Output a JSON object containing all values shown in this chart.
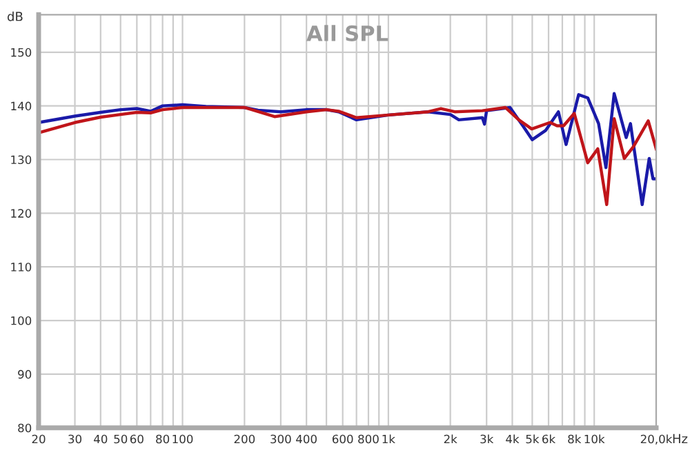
{
  "chart_data": {
    "type": "line",
    "title": "All SPL",
    "xlabel": "Hz",
    "ylabel": "dB",
    "log": "x",
    "xlim": [
      20,
      20000
    ],
    "ylim": [
      80,
      157
    ],
    "xticks": [
      20,
      30,
      40,
      50,
      60,
      {
        "value": 70,
        "label": null
      },
      80,
      {
        "value": 90,
        "label": null
      },
      100,
      200,
      300,
      400,
      {
        "value": 500,
        "label": null
      },
      600,
      {
        "value": 700,
        "label": null
      },
      800,
      {
        "value": 900,
        "label": null
      },
      {
        "value": 1000,
        "label": "1k"
      },
      {
        "value": 2000,
        "label": "2k"
      },
      {
        "value": 3000,
        "label": "3k"
      },
      {
        "value": 4000,
        "label": "4k"
      },
      {
        "value": 5000,
        "label": "5k"
      },
      {
        "value": 6000,
        "label": "6k"
      },
      {
        "value": 7000,
        "label": null
      },
      {
        "value": 8000,
        "label": "8k"
      },
      {
        "value": 9000,
        "label": null
      },
      {
        "value": 10000,
        "label": "10k"
      },
      {
        "value": 20000,
        "label": "20,0k"
      }
    ],
    "yticks": [
      80,
      90,
      100,
      110,
      120,
      130,
      140,
      150
    ],
    "grid": true,
    "marker": "none",
    "line_style": "solid",
    "series": [
      {
        "color": "#1a1aa8",
        "x": [
          20,
          30,
          40,
          50,
          60,
          70,
          80,
          100,
          130,
          200,
          233,
          300,
          400,
          500,
          573,
          700,
          1000,
          1560,
          2000,
          2200,
          2860,
          2930,
          3000,
          3900,
          4500,
          5000,
          5800,
          6700,
          7300,
          8400,
          9300,
          10500,
          11400,
          12500,
          14300,
          15000,
          17100,
          18500,
          19300,
          20000
        ],
        "values": [
          136.9,
          138.1,
          138.8,
          139.3,
          139.5,
          139.0,
          140.0,
          140.2,
          139.9,
          139.7,
          139.2,
          138.9,
          139.3,
          139.3,
          138.9,
          137.4,
          138.3,
          138.9,
          138.4,
          137.4,
          137.8,
          136.6,
          139.1,
          139.7,
          136.3,
          133.7,
          135.4,
          138.9,
          132.8,
          142.1,
          141.5,
          136.7,
          128.5,
          142.3,
          134.1,
          136.7,
          121.6,
          130.2,
          126.4,
          126.4
        ]
      },
      {
        "color": "#c0151a",
        "x": [
          20,
          30,
          40,
          50,
          60,
          70,
          80,
          100,
          200,
          280,
          400,
          500,
          573,
          700,
          1000,
          1560,
          1800,
          2100,
          2860,
          3700,
          4300,
          4970,
          6100,
          6600,
          7100,
          8000,
          9300,
          10400,
          11500,
          12500,
          14000,
          15500,
          18300,
          20000
        ],
        "values": [
          135.0,
          136.9,
          137.9,
          138.4,
          138.8,
          138.7,
          139.3,
          139.7,
          139.7,
          138.0,
          138.9,
          139.3,
          139.0,
          137.8,
          138.3,
          138.9,
          139.5,
          138.9,
          139.1,
          139.7,
          137.4,
          135.7,
          136.9,
          136.3,
          136.3,
          138.6,
          129.4,
          132.0,
          121.6,
          137.6,
          130.2,
          132.4,
          137.2,
          132.0
        ]
      }
    ]
  }
}
